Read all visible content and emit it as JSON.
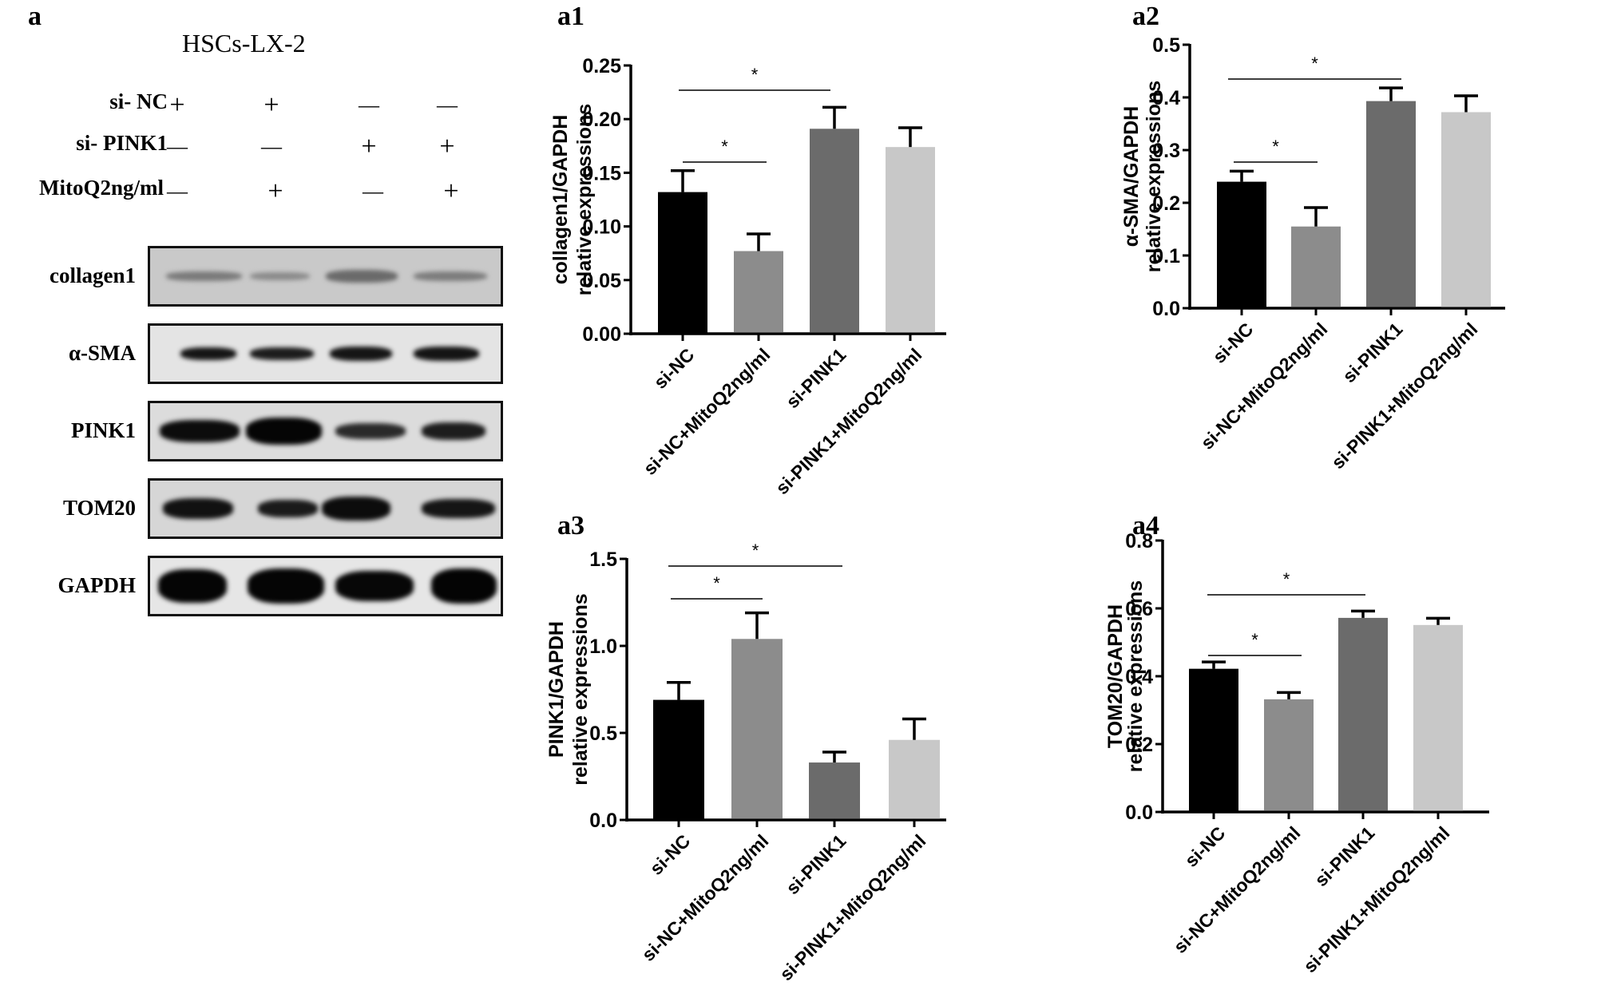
{
  "figure": {
    "panel_a_label": "a",
    "western_blot": {
      "title": "HSCs-LX-2",
      "conditions": [
        {
          "label": "si- NC",
          "signs": [
            "+",
            "+",
            "—",
            "—"
          ]
        },
        {
          "label": "si- PINK1",
          "signs": [
            "—",
            "—",
            "+",
            "+"
          ]
        },
        {
          "label": "MitoQ2ng/ml",
          "signs": [
            "—",
            "+",
            "—",
            "+"
          ]
        }
      ],
      "blots": [
        {
          "label": "collagen1"
        },
        {
          "label": "α-SMA"
        },
        {
          "label": "PINK1"
        },
        {
          "label": "TOM20"
        },
        {
          "label": "GAPDH"
        }
      ]
    }
  },
  "chart_data": [
    {
      "panel": "a1",
      "type": "bar",
      "title": "",
      "categories": [
        "si-NC",
        "si-NC+MitoQ2ng/ml",
        "si-PINK1",
        "si-PINK1+MitoQ2ng/ml"
      ],
      "values": [
        0.132,
        0.077,
        0.191,
        0.174
      ],
      "errors": [
        0.02,
        0.016,
        0.02,
        0.018
      ],
      "colors": [
        "#000000",
        "#8c8c8c",
        "#6b6b6b",
        "#c8c8c8"
      ],
      "xlabel": "",
      "ylabel": "collagen1/GAPDH relative expressions",
      "ylabel_lines": [
        "collagen1/GAPDH",
        "relative expressions"
      ],
      "ylim": [
        0,
        0.25
      ],
      "yticks": [
        "0.00",
        "0.05",
        "0.10",
        "0.15",
        "0.20",
        "0.25"
      ],
      "significance": [
        {
          "from": 0,
          "to": 1,
          "label": "*"
        },
        {
          "from": 0,
          "to": 2,
          "label": "*"
        }
      ],
      "grid": false,
      "legend": "none"
    },
    {
      "panel": "a2",
      "type": "bar",
      "title": "",
      "categories": [
        "si-NC",
        "si-NC+MitoQ2ng/ml",
        "si-PINK1",
        "si-PINK1+MitoQ2ng/ml"
      ],
      "values": [
        0.24,
        0.155,
        0.393,
        0.372
      ],
      "errors": [
        0.02,
        0.036,
        0.025,
        0.031
      ],
      "colors": [
        "#000000",
        "#8c8c8c",
        "#6b6b6b",
        "#c8c8c8"
      ],
      "xlabel": "",
      "ylabel": "α-SMA/GAPDH relative expressions",
      "ylabel_lines": [
        "α-SMA/GAPDH",
        "relative expressions"
      ],
      "ylim": [
        0,
        0.5
      ],
      "yticks": [
        "0.0",
        "0.1",
        "0.2",
        "0.3",
        "0.4",
        "0.5"
      ],
      "significance": [
        {
          "from": 0,
          "to": 1,
          "label": "*"
        },
        {
          "from": 0,
          "to": 2,
          "label": "*"
        }
      ],
      "grid": false,
      "legend": "none"
    },
    {
      "panel": "a3",
      "type": "bar",
      "title": "",
      "categories": [
        "si-NC",
        "si-NC+MitoQ2ng/ml",
        "si-PINK1",
        "si-PINK1+MitoQ2ng/ml"
      ],
      "values": [
        0.69,
        1.04,
        0.33,
        0.46
      ],
      "errors": [
        0.1,
        0.15,
        0.06,
        0.12
      ],
      "colors": [
        "#000000",
        "#8c8c8c",
        "#6b6b6b",
        "#c8c8c8"
      ],
      "xlabel": "",
      "ylabel": "PINK1/GAPDH relative expressions",
      "ylabel_lines": [
        "PINK1/GAPDH",
        "relative expressions"
      ],
      "ylim": [
        0,
        1.5
      ],
      "yticks": [
        "0.0",
        "0.5",
        "1.0",
        "1.5"
      ],
      "significance": [
        {
          "from": 0,
          "to": 1,
          "label": "*"
        },
        {
          "from": 0,
          "to": 2,
          "label": "*"
        }
      ],
      "grid": false,
      "legend": "none"
    },
    {
      "panel": "a4",
      "type": "bar",
      "title": "",
      "categories": [
        "si-NC",
        "si-NC+MitoQ2ng/ml",
        "si-PINK1",
        "si-PINK1+MitoQ2ng/ml"
      ],
      "values": [
        0.422,
        0.332,
        0.572,
        0.551
      ],
      "errors": [
        0.02,
        0.02,
        0.02,
        0.02
      ],
      "colors": [
        "#000000",
        "#8c8c8c",
        "#6b6b6b",
        "#c8c8c8"
      ],
      "xlabel": "",
      "ylabel": "TOM20/GAPDH relative expressions",
      "ylabel_lines": [
        "TOM20/GAPDH",
        "relative expressions"
      ],
      "ylim": [
        0,
        0.8
      ],
      "yticks": [
        "0.0",
        "0.2",
        "0.4",
        "0.6",
        "0.8"
      ],
      "significance": [
        {
          "from": 0,
          "to": 1,
          "label": "*"
        },
        {
          "from": 0,
          "to": 2,
          "label": "*"
        }
      ],
      "grid": false,
      "legend": "none"
    }
  ]
}
